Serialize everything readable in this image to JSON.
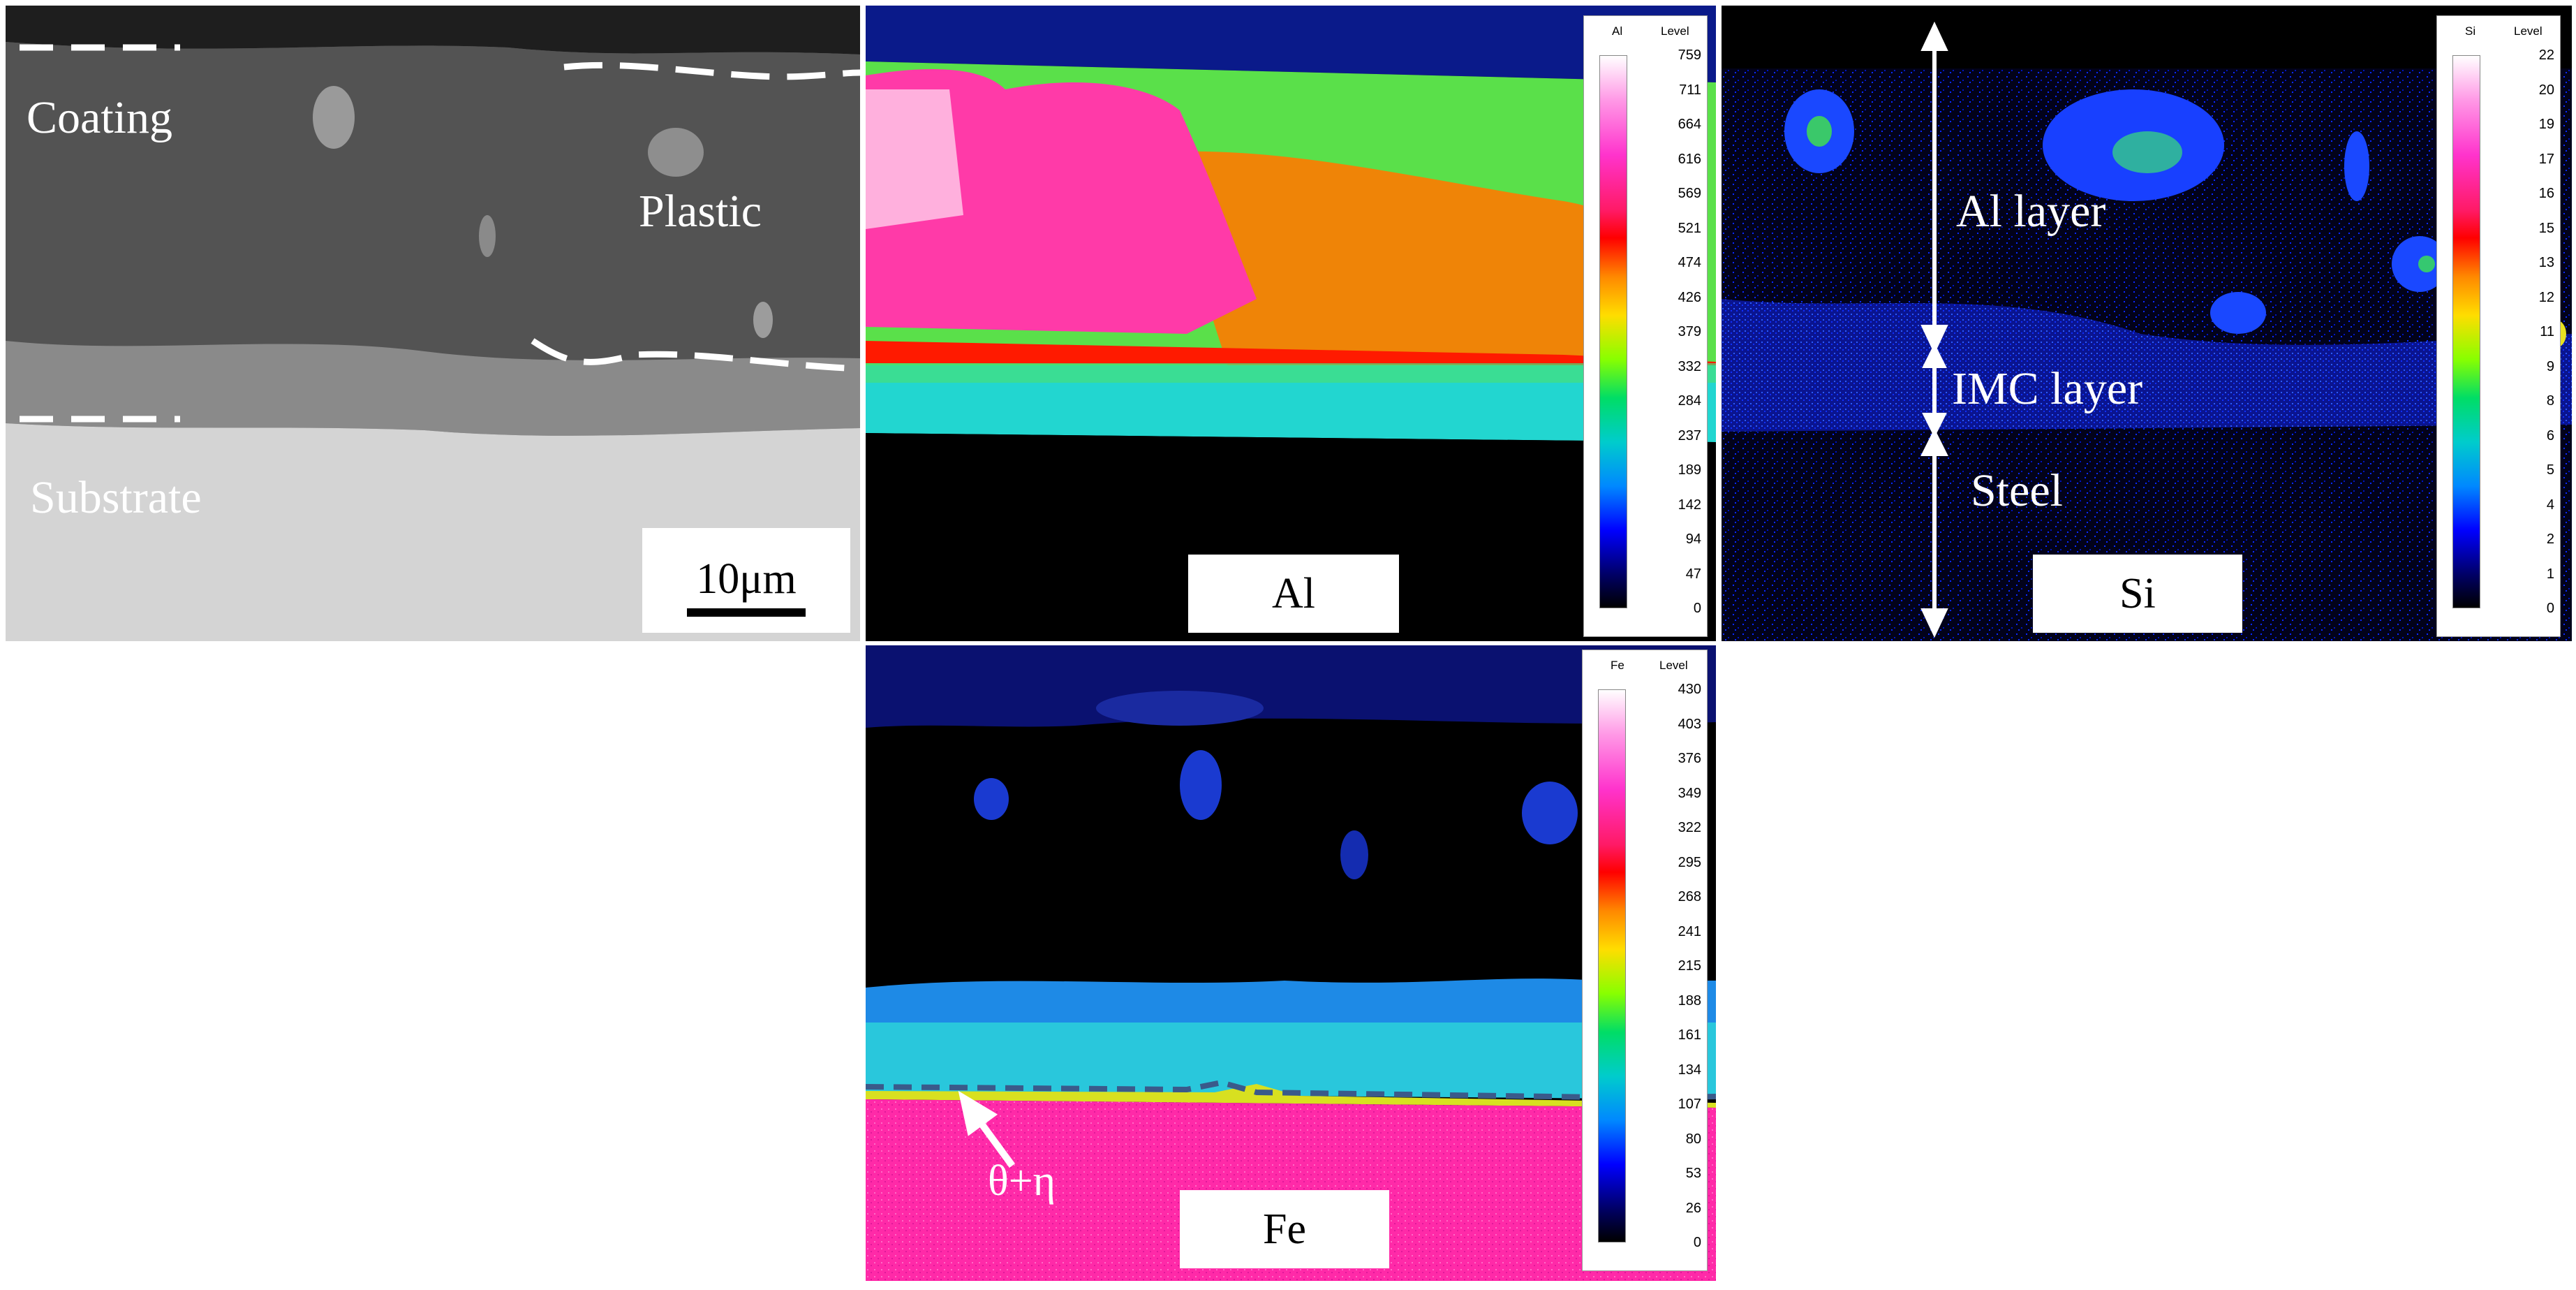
{
  "colors": {
    "sem_dark": "#4e4e4e",
    "sem_substrate": "#d6d6d6",
    "background": "#ffffff"
  },
  "sem_panel": {
    "labels": {
      "coating": "Coating",
      "plastic": "Plastic",
      "substrate": "Substrate"
    },
    "scale_bar": "10μm"
  },
  "al_map": {
    "element": "Al",
    "colorbar": {
      "symbol": "Al",
      "level": "Level",
      "ticks": [
        "759",
        "711",
        "664",
        "616",
        "569",
        "521",
        "474",
        "426",
        "379",
        "332",
        "284",
        "237",
        "189",
        "142",
        "94",
        "47",
        "0"
      ]
    }
  },
  "si_map": {
    "element": "Si",
    "annotations": {
      "al_layer": "Al layer",
      "imc_layer": "IMC layer",
      "steel": "Steel"
    },
    "colorbar": {
      "symbol": "Si",
      "level": "Level",
      "ticks": [
        "22",
        "20",
        "19",
        "17",
        "16",
        "15",
        "13",
        "12",
        "11",
        "9",
        "8",
        "6",
        "5",
        "4",
        "2",
        "1",
        "0"
      ]
    }
  },
  "fe_map": {
    "element": "Fe",
    "annotation": "θ+η",
    "colorbar": {
      "symbol": "Fe",
      "level": "Level",
      "ticks": [
        "430",
        "403",
        "376",
        "349",
        "322",
        "295",
        "268",
        "241",
        "215",
        "188",
        "161",
        "134",
        "107",
        "80",
        "53",
        "26",
        "0"
      ]
    }
  }
}
